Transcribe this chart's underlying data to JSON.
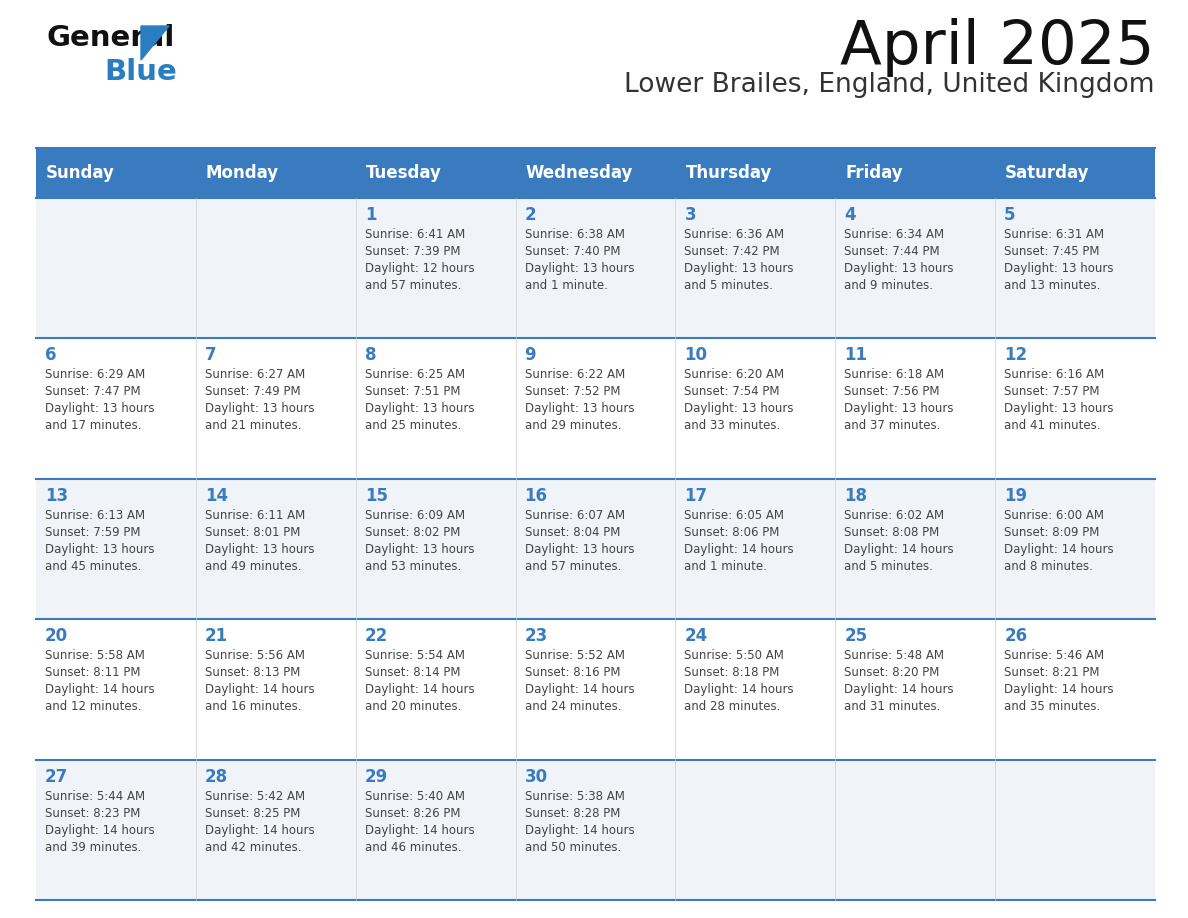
{
  "title": "April 2025",
  "subtitle": "Lower Brailes, England, United Kingdom",
  "header_bg": "#3a7bbf",
  "header_text": "#ffffff",
  "row_bg_even": "#f0f4f8",
  "row_bg_odd": "#ffffff",
  "day_number_color": "#3a7bbf",
  "text_color": "#444444",
  "border_color": "#3a7bbf",
  "weekdays": [
    "Sunday",
    "Monday",
    "Tuesday",
    "Wednesday",
    "Thursday",
    "Friday",
    "Saturday"
  ],
  "days": [
    {
      "day": 1,
      "col": 2,
      "row": 0,
      "sunrise": "6:41 AM",
      "sunset": "7:39 PM",
      "daylight": "12 hours and 57 minutes."
    },
    {
      "day": 2,
      "col": 3,
      "row": 0,
      "sunrise": "6:38 AM",
      "sunset": "7:40 PM",
      "daylight": "13 hours and 1 minute."
    },
    {
      "day": 3,
      "col": 4,
      "row": 0,
      "sunrise": "6:36 AM",
      "sunset": "7:42 PM",
      "daylight": "13 hours and 5 minutes."
    },
    {
      "day": 4,
      "col": 5,
      "row": 0,
      "sunrise": "6:34 AM",
      "sunset": "7:44 PM",
      "daylight": "13 hours and 9 minutes."
    },
    {
      "day": 5,
      "col": 6,
      "row": 0,
      "sunrise": "6:31 AM",
      "sunset": "7:45 PM",
      "daylight": "13 hours and 13 minutes."
    },
    {
      "day": 6,
      "col": 0,
      "row": 1,
      "sunrise": "6:29 AM",
      "sunset": "7:47 PM",
      "daylight": "13 hours and 17 minutes."
    },
    {
      "day": 7,
      "col": 1,
      "row": 1,
      "sunrise": "6:27 AM",
      "sunset": "7:49 PM",
      "daylight": "13 hours and 21 minutes."
    },
    {
      "day": 8,
      "col": 2,
      "row": 1,
      "sunrise": "6:25 AM",
      "sunset": "7:51 PM",
      "daylight": "13 hours and 25 minutes."
    },
    {
      "day": 9,
      "col": 3,
      "row": 1,
      "sunrise": "6:22 AM",
      "sunset": "7:52 PM",
      "daylight": "13 hours and 29 minutes."
    },
    {
      "day": 10,
      "col": 4,
      "row": 1,
      "sunrise": "6:20 AM",
      "sunset": "7:54 PM",
      "daylight": "13 hours and 33 minutes."
    },
    {
      "day": 11,
      "col": 5,
      "row": 1,
      "sunrise": "6:18 AM",
      "sunset": "7:56 PM",
      "daylight": "13 hours and 37 minutes."
    },
    {
      "day": 12,
      "col": 6,
      "row": 1,
      "sunrise": "6:16 AM",
      "sunset": "7:57 PM",
      "daylight": "13 hours and 41 minutes."
    },
    {
      "day": 13,
      "col": 0,
      "row": 2,
      "sunrise": "6:13 AM",
      "sunset": "7:59 PM",
      "daylight": "13 hours and 45 minutes."
    },
    {
      "day": 14,
      "col": 1,
      "row": 2,
      "sunrise": "6:11 AM",
      "sunset": "8:01 PM",
      "daylight": "13 hours and 49 minutes."
    },
    {
      "day": 15,
      "col": 2,
      "row": 2,
      "sunrise": "6:09 AM",
      "sunset": "8:02 PM",
      "daylight": "13 hours and 53 minutes."
    },
    {
      "day": 16,
      "col": 3,
      "row": 2,
      "sunrise": "6:07 AM",
      "sunset": "8:04 PM",
      "daylight": "13 hours and 57 minutes."
    },
    {
      "day": 17,
      "col": 4,
      "row": 2,
      "sunrise": "6:05 AM",
      "sunset": "8:06 PM",
      "daylight": "14 hours and 1 minute."
    },
    {
      "day": 18,
      "col": 5,
      "row": 2,
      "sunrise": "6:02 AM",
      "sunset": "8:08 PM",
      "daylight": "14 hours and 5 minutes."
    },
    {
      "day": 19,
      "col": 6,
      "row": 2,
      "sunrise": "6:00 AM",
      "sunset": "8:09 PM",
      "daylight": "14 hours and 8 minutes."
    },
    {
      "day": 20,
      "col": 0,
      "row": 3,
      "sunrise": "5:58 AM",
      "sunset": "8:11 PM",
      "daylight": "14 hours and 12 minutes."
    },
    {
      "day": 21,
      "col": 1,
      "row": 3,
      "sunrise": "5:56 AM",
      "sunset": "8:13 PM",
      "daylight": "14 hours and 16 minutes."
    },
    {
      "day": 22,
      "col": 2,
      "row": 3,
      "sunrise": "5:54 AM",
      "sunset": "8:14 PM",
      "daylight": "14 hours and 20 minutes."
    },
    {
      "day": 23,
      "col": 3,
      "row": 3,
      "sunrise": "5:52 AM",
      "sunset": "8:16 PM",
      "daylight": "14 hours and 24 minutes."
    },
    {
      "day": 24,
      "col": 4,
      "row": 3,
      "sunrise": "5:50 AM",
      "sunset": "8:18 PM",
      "daylight": "14 hours and 28 minutes."
    },
    {
      "day": 25,
      "col": 5,
      "row": 3,
      "sunrise": "5:48 AM",
      "sunset": "8:20 PM",
      "daylight": "14 hours and 31 minutes."
    },
    {
      "day": 26,
      "col": 6,
      "row": 3,
      "sunrise": "5:46 AM",
      "sunset": "8:21 PM",
      "daylight": "14 hours and 35 minutes."
    },
    {
      "day": 27,
      "col": 0,
      "row": 4,
      "sunrise": "5:44 AM",
      "sunset": "8:23 PM",
      "daylight": "14 hours and 39 minutes."
    },
    {
      "day": 28,
      "col": 1,
      "row": 4,
      "sunrise": "5:42 AM",
      "sunset": "8:25 PM",
      "daylight": "14 hours and 42 minutes."
    },
    {
      "day": 29,
      "col": 2,
      "row": 4,
      "sunrise": "5:40 AM",
      "sunset": "8:26 PM",
      "daylight": "14 hours and 46 minutes."
    },
    {
      "day": 30,
      "col": 3,
      "row": 4,
      "sunrise": "5:38 AM",
      "sunset": "8:28 PM",
      "daylight": "14 hours and 50 minutes."
    }
  ],
  "logo_general_color": "#111111",
  "logo_blue_color": "#2a7dc0",
  "logo_triangle_color": "#2a7dc0"
}
